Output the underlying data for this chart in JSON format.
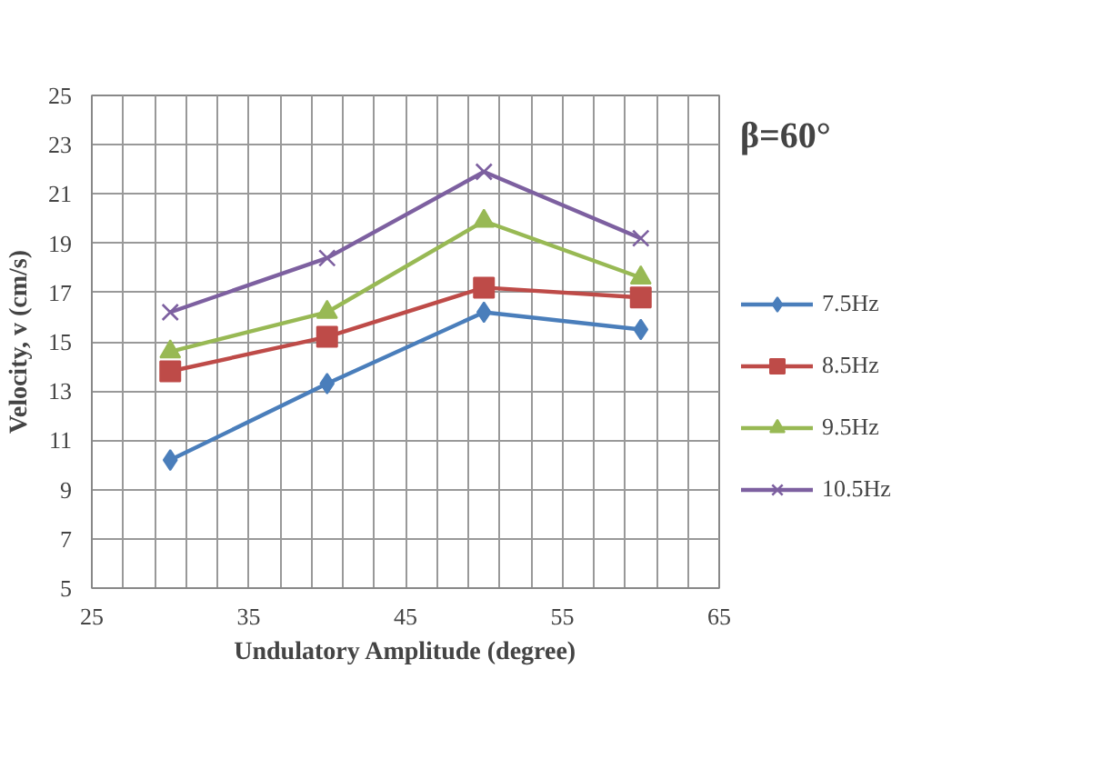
{
  "chart_data": {
    "type": "line",
    "title": "β=60°",
    "xlabel": "Undulatory Amplitude (degree)",
    "ylabel": "Velocity, v (cm/s)",
    "x": [
      30,
      40,
      50,
      60
    ],
    "series": [
      {
        "name": "7.5Hz",
        "color": "#4a7ebb",
        "marker": "diamond",
        "values": [
          10.2,
          13.3,
          16.2,
          15.5
        ]
      },
      {
        "name": "8.5Hz",
        "color": "#be4b48",
        "marker": "square",
        "values": [
          13.8,
          15.2,
          17.2,
          16.8
        ]
      },
      {
        "name": "9.5Hz",
        "color": "#98b954",
        "marker": "triangle",
        "values": [
          14.6,
          16.2,
          19.9,
          17.6
        ]
      },
      {
        "name": "10.5Hz",
        "color": "#7d60a0",
        "marker": "cross",
        "values": [
          16.2,
          18.4,
          21.9,
          19.2
        ]
      }
    ],
    "xlim": [
      25,
      65
    ],
    "ylim": [
      5,
      25
    ],
    "xticks": [
      25,
      {
        "value": 27,
        "label": null
      },
      {
        "value": 29,
        "label": null
      },
      {
        "value": 31,
        "label": null
      },
      {
        "value": 33,
        "label": null
      },
      35,
      {
        "value": 37,
        "label": null
      },
      {
        "value": 39,
        "label": null
      },
      {
        "value": 41,
        "label": null
      },
      {
        "value": 43,
        "label": null
      },
      45,
      {
        "value": 47,
        "label": null
      },
      {
        "value": 49,
        "label": null
      },
      {
        "value": 51,
        "label": null
      },
      {
        "value": 53,
        "label": null
      },
      55,
      {
        "value": 57,
        "label": null
      },
      {
        "value": 59,
        "label": null
      },
      {
        "value": 61,
        "label": null
      },
      {
        "value": 63,
        "label": null
      },
      65
    ],
    "yticks": [
      5,
      7,
      9,
      11,
      13,
      15,
      17,
      19,
      21,
      23,
      25
    ],
    "grid": true,
    "legend": "right",
    "line_style": "solid"
  }
}
